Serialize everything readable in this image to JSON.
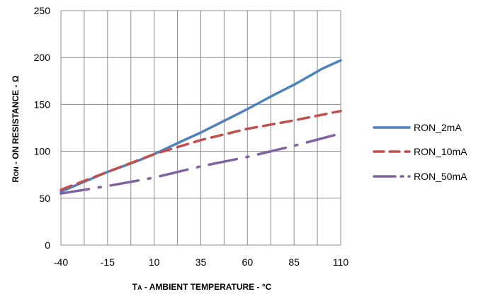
{
  "chart_data": {
    "type": "line",
    "title": "",
    "xlabel": {
      "main_prefix": "T",
      "sub": "A",
      "rest": " - AMBIENT  TEMPERATURE   - °C"
    },
    "ylabel": {
      "main_prefix": "R",
      "sub": "ON",
      "rest": " - ON RESISTANCE  - Ω"
    },
    "xlim": [
      -40,
      110
    ],
    "ylim": [
      0,
      250
    ],
    "x_ticks": [
      "-40",
      "-15",
      "10",
      "35",
      "60",
      "85",
      "110"
    ],
    "y_ticks": [
      "0",
      "50",
      "100",
      "150",
      "200",
      "250"
    ],
    "grid": true,
    "legend_position": "right",
    "series": [
      {
        "name": "RON_2mA",
        "color": "#4f81bd",
        "dash": "solid",
        "x": [
          -40,
          -15,
          0,
          10,
          25,
          35,
          50,
          60,
          75,
          85,
          100,
          110
        ],
        "y": [
          57,
          78,
          89,
          97,
          111,
          120,
          135,
          145,
          161,
          171,
          188,
          197
        ]
      },
      {
        "name": "RON_10mA",
        "color": "#c0504d",
        "dash": "dashed",
        "x": [
          -40,
          -15,
          10,
          35,
          60,
          85,
          110
        ],
        "y": [
          59,
          78,
          97,
          112,
          124,
          133,
          143
        ]
      },
      {
        "name": "RON_50mA",
        "color": "#8064a2",
        "dash": "dashdot",
        "x": [
          -40,
          -15,
          10,
          35,
          60,
          85,
          110
        ],
        "y": [
          55,
          63,
          72,
          84,
          94,
          106,
          119
        ]
      }
    ]
  }
}
